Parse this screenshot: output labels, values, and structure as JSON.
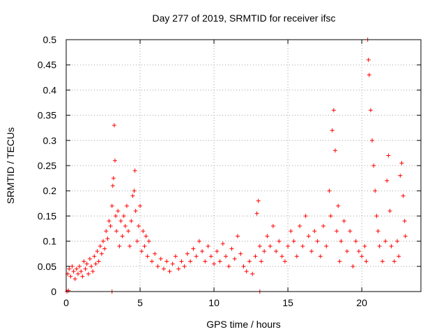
{
  "chart_data": {
    "type": "scatter",
    "title": "Day 277 of 2019, SRMTID for receiver ifsc",
    "xlabel": "GPS time / hours",
    "ylabel": "SRMTID / TECUs",
    "xlim": [
      0,
      24
    ],
    "ylim": [
      0,
      0.5
    ],
    "grid": true,
    "marker": "+",
    "series_color": "#ff0000",
    "x_ticks": [
      {
        "value": 0,
        "label": "0"
      },
      {
        "value": 5,
        "label": "5"
      },
      {
        "value": 10,
        "label": "10"
      },
      {
        "value": 15,
        "label": "15"
      },
      {
        "value": 20,
        "label": "20"
      }
    ],
    "y_ticks": [
      {
        "value": 0,
        "label": "0"
      },
      {
        "value": 0.05,
        "label": "0.05"
      },
      {
        "value": 0.1,
        "label": "0.1"
      },
      {
        "value": 0.15,
        "label": "0.15"
      },
      {
        "value": 0.2,
        "label": "0.2"
      },
      {
        "value": 0.25,
        "label": "0.25"
      },
      {
        "value": 0.3,
        "label": "0.3"
      },
      {
        "value": 0.35,
        "label": "0.35"
      },
      {
        "value": 0.4,
        "label": "0.4"
      },
      {
        "value": 0.45,
        "label": "0.45"
      },
      {
        "value": 0.5,
        "label": "0.5"
      }
    ],
    "series": [
      {
        "name": "SRMTID",
        "points": [
          [
            0.1,
            0.035
          ],
          [
            0.2,
            0.045
          ],
          [
            0.3,
            0.03
          ],
          [
            0.4,
            0.05
          ],
          [
            0.5,
            0.04
          ],
          [
            0.6,
            0.025
          ],
          [
            0.7,
            0.045
          ],
          [
            0.8,
            0.035
          ],
          [
            0.9,
            0.05
          ],
          [
            1.0,
            0.04
          ],
          [
            1.1,
            0.03
          ],
          [
            1.2,
            0.06
          ],
          [
            1.3,
            0.045
          ],
          [
            1.4,
            0.055
          ],
          [
            1.5,
            0.035
          ],
          [
            1.6,
            0.065
          ],
          [
            1.7,
            0.05
          ],
          [
            1.8,
            0.04
          ],
          [
            1.9,
            0.07
          ],
          [
            2.0,
            0.055
          ],
          [
            2.1,
            0.08
          ],
          [
            2.2,
            0.06
          ],
          [
            2.3,
            0.09
          ],
          [
            2.4,
            0.075
          ],
          [
            2.5,
            0.1
          ],
          [
            2.6,
            0.085
          ],
          [
            2.7,
            0.12
          ],
          [
            2.8,
            0.105
          ],
          [
            2.9,
            0.14
          ],
          [
            3.0,
            0.13
          ],
          [
            3.1,
            0.17
          ],
          [
            3.15,
            0.21
          ],
          [
            3.2,
            0.225
          ],
          [
            3.25,
            0.33
          ],
          [
            3.3,
            0.26
          ],
          [
            3.35,
            0.15
          ],
          [
            3.4,
            0.12
          ],
          [
            3.5,
            0.16
          ],
          [
            3.6,
            0.09
          ],
          [
            3.7,
            0.14
          ],
          [
            3.8,
            0.11
          ],
          [
            3.9,
            0.15
          ],
          [
            4.0,
            0.13
          ],
          [
            4.1,
            0.17
          ],
          [
            4.2,
            0.12
          ],
          [
            4.3,
            0.09
          ],
          [
            4.4,
            0.14
          ],
          [
            4.5,
            0.19
          ],
          [
            4.6,
            0.2
          ],
          [
            4.65,
            0.24
          ],
          [
            4.7,
            0.16
          ],
          [
            4.8,
            0.1
          ],
          [
            4.9,
            0.13
          ],
          [
            5.0,
            0.17
          ],
          [
            5.1,
            0.08
          ],
          [
            5.2,
            0.12
          ],
          [
            5.3,
            0.09
          ],
          [
            5.4,
            0.11
          ],
          [
            5.5,
            0.07
          ],
          [
            5.6,
            0.1
          ],
          [
            5.8,
            0.06
          ],
          [
            6.0,
            0.075
          ],
          [
            6.2,
            0.05
          ],
          [
            6.4,
            0.065
          ],
          [
            6.6,
            0.045
          ],
          [
            6.8,
            0.06
          ],
          [
            7.0,
            0.04
          ],
          [
            7.2,
            0.055
          ],
          [
            7.4,
            0.07
          ],
          [
            7.6,
            0.045
          ],
          [
            7.8,
            0.06
          ],
          [
            8.0,
            0.05
          ],
          [
            8.2,
            0.075
          ],
          [
            8.4,
            0.06
          ],
          [
            8.6,
            0.085
          ],
          [
            8.8,
            0.07
          ],
          [
            9.0,
            0.1
          ],
          [
            9.2,
            0.08
          ],
          [
            9.4,
            0.06
          ],
          [
            9.6,
            0.09
          ],
          [
            9.8,
            0.07
          ],
          [
            10.0,
            0.055
          ],
          [
            10.2,
            0.08
          ],
          [
            10.4,
            0.06
          ],
          [
            10.6,
            0.095
          ],
          [
            10.8,
            0.07
          ],
          [
            11.0,
            0.05
          ],
          [
            11.2,
            0.085
          ],
          [
            11.4,
            0.065
          ],
          [
            11.6,
            0.11
          ],
          [
            11.8,
            0.075
          ],
          [
            12.0,
            0.05
          ],
          [
            12.2,
            0.04
          ],
          [
            12.4,
            0.06
          ],
          [
            12.6,
            0.035
          ],
          [
            12.8,
            0.07
          ],
          [
            12.9,
            0.155
          ],
          [
            13.0,
            0.18
          ],
          [
            13.1,
            0.09
          ],
          [
            13.2,
            0.06
          ],
          [
            13.4,
            0.08
          ],
          [
            13.6,
            0.11
          ],
          [
            13.8,
            0.09
          ],
          [
            14.0,
            0.13
          ],
          [
            14.2,
            0.08
          ],
          [
            14.4,
            0.1
          ],
          [
            14.6,
            0.07
          ],
          [
            14.8,
            0.06
          ],
          [
            15.0,
            0.09
          ],
          [
            15.2,
            0.12
          ],
          [
            15.4,
            0.1
          ],
          [
            15.6,
            0.07
          ],
          [
            15.8,
            0.13
          ],
          [
            16.0,
            0.09
          ],
          [
            16.2,
            0.15
          ],
          [
            16.4,
            0.11
          ],
          [
            16.6,
            0.08
          ],
          [
            16.8,
            0.12
          ],
          [
            17.0,
            0.1
          ],
          [
            17.2,
            0.07
          ],
          [
            17.4,
            0.13
          ],
          [
            17.6,
            0.09
          ],
          [
            17.8,
            0.2
          ],
          [
            17.9,
            0.15
          ],
          [
            18.0,
            0.32
          ],
          [
            18.1,
            0.36
          ],
          [
            18.2,
            0.28
          ],
          [
            18.3,
            0.12
          ],
          [
            18.4,
            0.17
          ],
          [
            18.5,
            0.06
          ],
          [
            18.6,
            0.1
          ],
          [
            18.8,
            0.14
          ],
          [
            19.0,
            0.08
          ],
          [
            19.2,
            0.12
          ],
          [
            19.4,
            0.05
          ],
          [
            19.6,
            0.1
          ],
          [
            19.8,
            0.08
          ],
          [
            20.0,
            0.07
          ],
          [
            20.2,
            0.09
          ],
          [
            20.3,
            0.06
          ],
          [
            20.4,
            0.5
          ],
          [
            20.45,
            0.46
          ],
          [
            20.5,
            0.43
          ],
          [
            20.6,
            0.36
          ],
          [
            20.7,
            0.3
          ],
          [
            20.8,
            0.25
          ],
          [
            20.9,
            0.2
          ],
          [
            21.0,
            0.15
          ],
          [
            21.1,
            0.12
          ],
          [
            21.2,
            0.09
          ],
          [
            21.4,
            0.06
          ],
          [
            21.6,
            0.1
          ],
          [
            21.7,
            0.22
          ],
          [
            21.8,
            0.27
          ],
          [
            21.9,
            0.16
          ],
          [
            22.0,
            0.09
          ],
          [
            22.2,
            0.06
          ],
          [
            22.4,
            0.1
          ],
          [
            22.5,
            0.07
          ],
          [
            22.6,
            0.23
          ],
          [
            22.7,
            0.255
          ],
          [
            22.8,
            0.19
          ],
          [
            22.9,
            0.14
          ],
          [
            22.95,
            0.11
          ],
          [
            0.05,
            0.0
          ],
          [
            0.15,
            0.002
          ],
          [
            3.1,
            0.0
          ],
          [
            13.1,
            0.0
          ]
        ]
      }
    ]
  }
}
